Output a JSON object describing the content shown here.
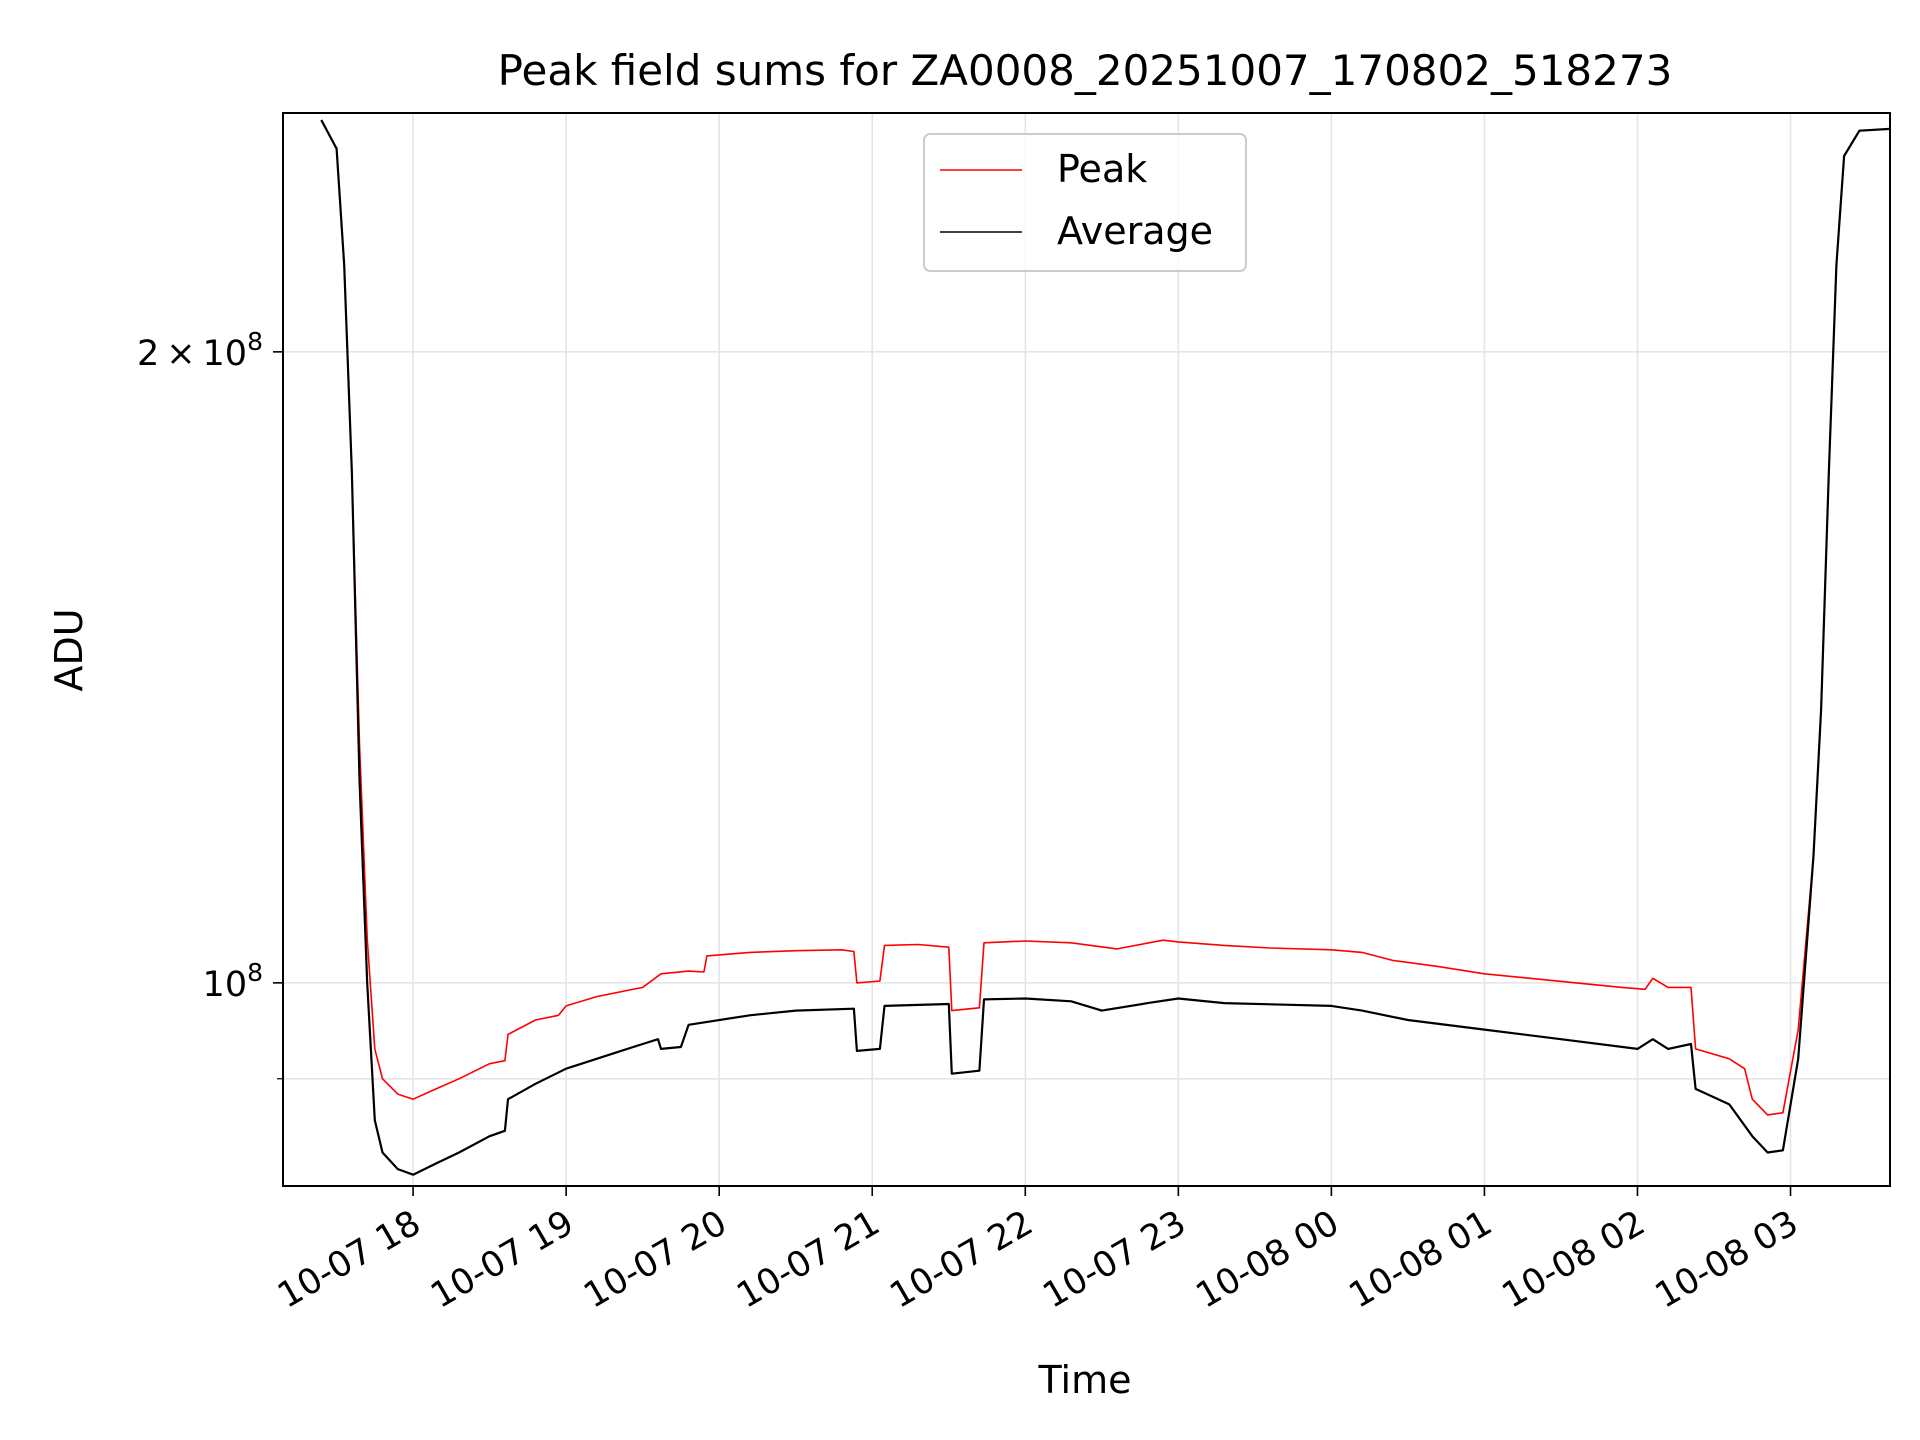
{
  "chart_data": {
    "type": "line",
    "title": "Peak field sums for ZA0008_20251007_170802_518273",
    "xlabel": "Time",
    "ylabel": "ADU",
    "yscale": "log",
    "xlim": [
      -0.85,
      9.65
    ],
    "ylim": [
      80000000,
      260000000
    ],
    "grid": true,
    "legend_position": "upper center",
    "x_ticks": [
      {
        "value": 0,
        "label": "10-07 18"
      },
      {
        "value": 1,
        "label": "10-07 19"
      },
      {
        "value": 2,
        "label": "10-07 20"
      },
      {
        "value": 3,
        "label": "10-07 21"
      },
      {
        "value": 4,
        "label": "10-07 22"
      },
      {
        "value": 5,
        "label": "10-07 23"
      },
      {
        "value": 6,
        "label": "10-08 00"
      },
      {
        "value": 7,
        "label": "10-08 01"
      },
      {
        "value": 8,
        "label": "10-08 02"
      },
      {
        "value": 9,
        "label": "10-08 03"
      }
    ],
    "y_ticks": [
      {
        "value": 100000000,
        "label_base": "10",
        "label_exp": "8"
      },
      {
        "value": 200000000,
        "label_mult": "2",
        "label_base": "10",
        "label_exp": "8"
      }
    ],
    "y_minor_ticks": [
      90000000
    ],
    "x_unit_note": "hours relative to 10-07 18:00",
    "series": [
      {
        "name": "Peak",
        "color": "#ff0000",
        "points": [
          [
            -0.6,
            258000000
          ],
          [
            -0.5,
            250000000
          ],
          [
            -0.45,
            220000000
          ],
          [
            -0.4,
            175000000
          ],
          [
            -0.35,
            130000000
          ],
          [
            -0.3,
            105000000
          ],
          [
            -0.25,
            93000000
          ],
          [
            -0.2,
            90000000
          ],
          [
            -0.1,
            88500000
          ],
          [
            0.0,
            88000000
          ],
          [
            0.15,
            89000000
          ],
          [
            0.3,
            90000000
          ],
          [
            0.5,
            91500000
          ],
          [
            0.6,
            91800000
          ],
          [
            0.62,
            94500000
          ],
          [
            0.8,
            96000000
          ],
          [
            0.95,
            96500000
          ],
          [
            1.0,
            97500000
          ],
          [
            1.2,
            98500000
          ],
          [
            1.5,
            99500000
          ],
          [
            1.62,
            101000000
          ],
          [
            1.8,
            101300000
          ],
          [
            1.9,
            101200000
          ],
          [
            1.92,
            103000000
          ],
          [
            2.2,
            103400000
          ],
          [
            2.5,
            103600000
          ],
          [
            2.8,
            103700000
          ],
          [
            2.88,
            103500000
          ],
          [
            2.9,
            100000000
          ],
          [
            3.05,
            100200000
          ],
          [
            3.08,
            104200000
          ],
          [
            3.3,
            104300000
          ],
          [
            3.5,
            104000000
          ],
          [
            3.52,
            97000000
          ],
          [
            3.7,
            97300000
          ],
          [
            3.73,
            104500000
          ],
          [
            4.0,
            104700000
          ],
          [
            4.3,
            104500000
          ],
          [
            4.6,
            103800000
          ],
          [
            4.9,
            104800000
          ],
          [
            5.0,
            104600000
          ],
          [
            5.3,
            104200000
          ],
          [
            5.6,
            103900000
          ],
          [
            6.0,
            103700000
          ],
          [
            6.2,
            103400000
          ],
          [
            6.4,
            102500000
          ],
          [
            6.7,
            101800000
          ],
          [
            7.0,
            101000000
          ],
          [
            7.3,
            100500000
          ],
          [
            7.6,
            100000000
          ],
          [
            7.9,
            99500000
          ],
          [
            8.05,
            99300000
          ],
          [
            8.1,
            100500000
          ],
          [
            8.2,
            99500000
          ],
          [
            8.35,
            99500000
          ],
          [
            8.38,
            93000000
          ],
          [
            8.6,
            92000000
          ],
          [
            8.7,
            91000000
          ],
          [
            8.75,
            88000000
          ],
          [
            8.85,
            86500000
          ],
          [
            8.95,
            86700000
          ],
          [
            9.05,
            95000000
          ],
          [
            9.15,
            115000000
          ],
          [
            9.2,
            135000000
          ],
          [
            9.25,
            175000000
          ],
          [
            9.3,
            220000000
          ],
          [
            9.35,
            248000000
          ],
          [
            9.45,
            255000000
          ],
          [
            9.65,
            255500000
          ]
        ]
      },
      {
        "name": "Average",
        "color": "#000000",
        "points": [
          [
            -0.6,
            258000000
          ],
          [
            -0.5,
            250000000
          ],
          [
            -0.45,
            220000000
          ],
          [
            -0.4,
            175000000
          ],
          [
            -0.35,
            125000000
          ],
          [
            -0.3,
            100000000
          ],
          [
            -0.25,
            86000000
          ],
          [
            -0.2,
            83000000
          ],
          [
            -0.1,
            81500000
          ],
          [
            0.0,
            81000000
          ],
          [
            0.15,
            82000000
          ],
          [
            0.3,
            83000000
          ],
          [
            0.5,
            84500000
          ],
          [
            0.6,
            85000000
          ],
          [
            0.62,
            88000000
          ],
          [
            0.8,
            89500000
          ],
          [
            1.0,
            91000000
          ],
          [
            1.3,
            92500000
          ],
          [
            1.5,
            93500000
          ],
          [
            1.6,
            94000000
          ],
          [
            1.62,
            93000000
          ],
          [
            1.75,
            93200000
          ],
          [
            1.8,
            95500000
          ],
          [
            2.2,
            96500000
          ],
          [
            2.5,
            97000000
          ],
          [
            2.88,
            97200000
          ],
          [
            2.9,
            92800000
          ],
          [
            3.05,
            93000000
          ],
          [
            3.08,
            97500000
          ],
          [
            3.5,
            97700000
          ],
          [
            3.52,
            90500000
          ],
          [
            3.7,
            90800000
          ],
          [
            3.73,
            98200000
          ],
          [
            4.0,
            98300000
          ],
          [
            4.3,
            98000000
          ],
          [
            4.5,
            97000000
          ],
          [
            4.8,
            97800000
          ],
          [
            5.0,
            98300000
          ],
          [
            5.3,
            97800000
          ],
          [
            6.0,
            97500000
          ],
          [
            6.2,
            97000000
          ],
          [
            6.5,
            96000000
          ],
          [
            7.0,
            95000000
          ],
          [
            7.5,
            94000000
          ],
          [
            8.0,
            93000000
          ],
          [
            8.1,
            94000000
          ],
          [
            8.2,
            93000000
          ],
          [
            8.35,
            93500000
          ],
          [
            8.38,
            89000000
          ],
          [
            8.6,
            87500000
          ],
          [
            8.75,
            84500000
          ],
          [
            8.85,
            83000000
          ],
          [
            8.95,
            83200000
          ],
          [
            9.05,
            92000000
          ],
          [
            9.15,
            115000000
          ],
          [
            9.2,
            135000000
          ],
          [
            9.25,
            175000000
          ],
          [
            9.3,
            220000000
          ],
          [
            9.35,
            248000000
          ],
          [
            9.45,
            255000000
          ],
          [
            9.65,
            255500000
          ]
        ]
      }
    ]
  }
}
